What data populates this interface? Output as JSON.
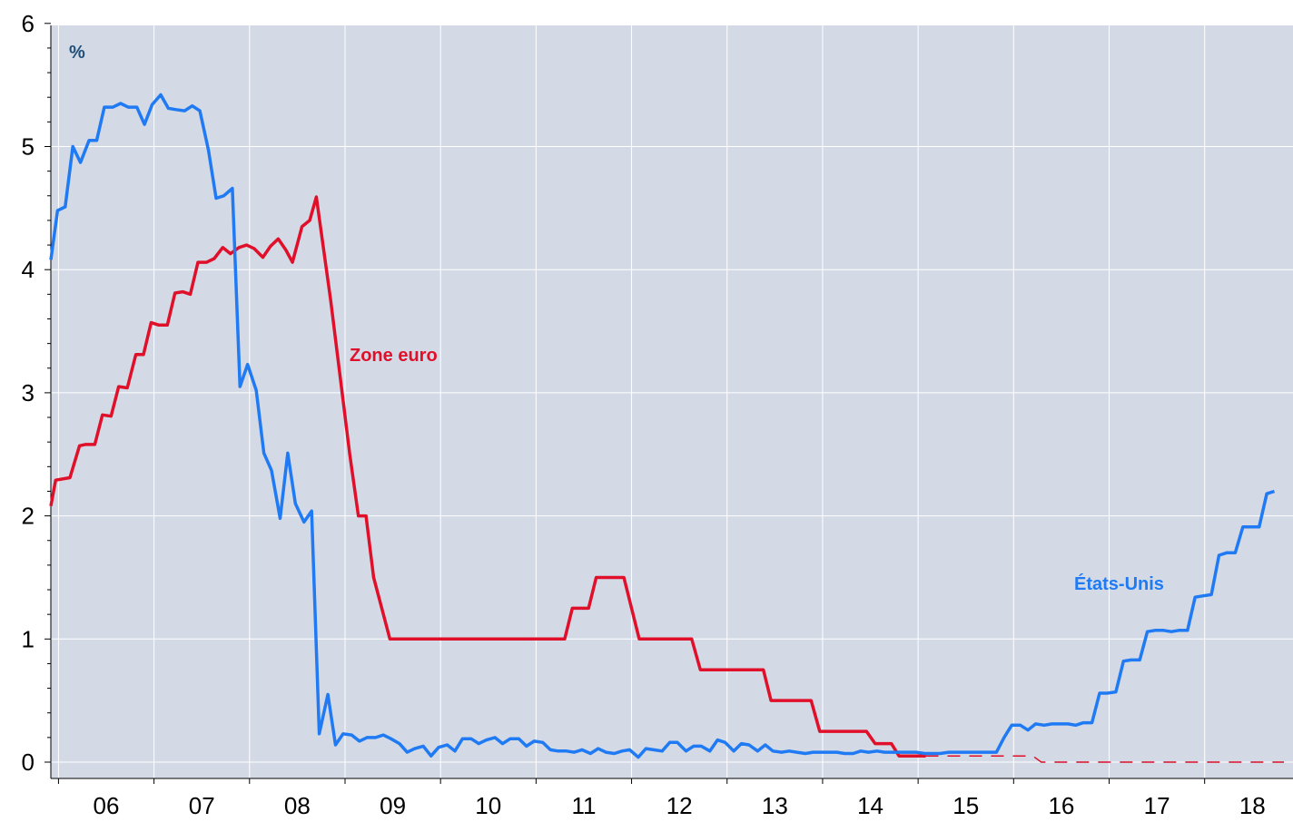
{
  "chart_data": {
    "type": "line",
    "unit_label": "%",
    "x_tick_labels": [
      "06",
      "07",
      "08",
      "09",
      "10",
      "11",
      "12",
      "13",
      "14",
      "15",
      "16",
      "17",
      "18"
    ],
    "y_ticks": [
      0,
      1,
      2,
      3,
      4,
      5,
      6
    ],
    "xlim": [
      2005.92,
      2018.83
    ],
    "ylim": [
      -0.1,
      6
    ],
    "grid": true,
    "colors": {
      "plot_background": "#d3dae6",
      "grid": "#ffffff",
      "unit_label": "#1f4e79"
    },
    "series": [
      {
        "name": "Zone euro",
        "color": "#e0102a",
        "style": "solid",
        "label_color": "#e0102a",
        "points": [
          [
            2005.92,
            2.08
          ],
          [
            2005.97,
            2.29
          ],
          [
            2006.12,
            2.31
          ],
          [
            2006.22,
            2.57
          ],
          [
            2006.28,
            2.58
          ],
          [
            2006.38,
            2.58
          ],
          [
            2006.46,
            2.82
          ],
          [
            2006.55,
            2.81
          ],
          [
            2006.63,
            3.05
          ],
          [
            2006.72,
            3.04
          ],
          [
            2006.81,
            3.31
          ],
          [
            2006.89,
            3.31
          ],
          [
            2006.97,
            3.57
          ],
          [
            2007.05,
            3.55
          ],
          [
            2007.14,
            3.55
          ],
          [
            2007.22,
            3.81
          ],
          [
            2007.3,
            3.82
          ],
          [
            2007.38,
            3.8
          ],
          [
            2007.46,
            4.06
          ],
          [
            2007.55,
            4.06
          ],
          [
            2007.63,
            4.09
          ],
          [
            2007.72,
            4.18
          ],
          [
            2007.8,
            4.13
          ],
          [
            2007.89,
            4.18
          ],
          [
            2007.97,
            4.2
          ],
          [
            2008.05,
            4.17
          ],
          [
            2008.14,
            4.1
          ],
          [
            2008.22,
            4.19
          ],
          [
            2008.3,
            4.25
          ],
          [
            2008.38,
            4.16
          ],
          [
            2008.45,
            4.06
          ],
          [
            2008.55,
            4.35
          ],
          [
            2008.63,
            4.4
          ],
          [
            2008.7,
            4.59
          ],
          [
            2008.85,
            3.75
          ],
          [
            2008.97,
            3.0
          ],
          [
            2009.05,
            2.5
          ],
          [
            2009.14,
            2.0
          ],
          [
            2009.22,
            2.0
          ],
          [
            2009.3,
            1.5
          ],
          [
            2009.47,
            1.0
          ],
          [
            2010.0,
            1.0
          ],
          [
            2010.5,
            1.0
          ],
          [
            2011.0,
            1.0
          ],
          [
            2011.3,
            1.0
          ],
          [
            2011.38,
            1.25
          ],
          [
            2011.55,
            1.25
          ],
          [
            2011.63,
            1.5
          ],
          [
            2011.92,
            1.5
          ],
          [
            2012.08,
            1.0
          ],
          [
            2012.63,
            1.0
          ],
          [
            2012.72,
            0.75
          ],
          [
            2013.25,
            0.75
          ],
          [
            2013.38,
            0.75
          ],
          [
            2013.46,
            0.5
          ],
          [
            2013.88,
            0.5
          ],
          [
            2013.97,
            0.25
          ],
          [
            2014.46,
            0.25
          ],
          [
            2014.55,
            0.15
          ],
          [
            2014.72,
            0.15
          ],
          [
            2014.8,
            0.05
          ],
          [
            2015.08,
            0.05
          ]
        ]
      },
      {
        "name": "Zone euro (suite)",
        "color": "#e0102a",
        "style": "dashed",
        "points": [
          [
            2015.08,
            0.05
          ],
          [
            2015.72,
            0.05
          ],
          [
            2015.72,
            0.05
          ],
          [
            2016.2,
            0.05
          ],
          [
            2016.29,
            0.0
          ],
          [
            2018.83,
            0.0
          ]
        ]
      },
      {
        "name": "États-Unis",
        "color": "#1f7af3",
        "style": "solid",
        "label_color": "#1f7af3",
        "points": [
          [
            2005.92,
            4.08
          ],
          [
            2005.99,
            4.48
          ],
          [
            2006.07,
            4.51
          ],
          [
            2006.15,
            5.0
          ],
          [
            2006.23,
            4.87
          ],
          [
            2006.32,
            5.05
          ],
          [
            2006.4,
            5.05
          ],
          [
            2006.48,
            5.32
          ],
          [
            2006.57,
            5.32
          ],
          [
            2006.65,
            5.35
          ],
          [
            2006.73,
            5.32
          ],
          [
            2006.82,
            5.32
          ],
          [
            2006.9,
            5.18
          ],
          [
            2006.98,
            5.34
          ],
          [
            2007.07,
            5.42
          ],
          [
            2007.15,
            5.31
          ],
          [
            2007.23,
            5.3
          ],
          [
            2007.32,
            5.29
          ],
          [
            2007.4,
            5.33
          ],
          [
            2007.48,
            5.29
          ],
          [
            2007.57,
            4.97
          ],
          [
            2007.65,
            4.58
          ],
          [
            2007.73,
            4.6
          ],
          [
            2007.82,
            4.66
          ],
          [
            2007.9,
            3.05
          ],
          [
            2007.98,
            3.23
          ],
          [
            2008.07,
            3.02
          ],
          [
            2008.15,
            2.51
          ],
          [
            2008.23,
            2.37
          ],
          [
            2008.32,
            1.98
          ],
          [
            2008.4,
            2.51
          ],
          [
            2008.48,
            2.1
          ],
          [
            2008.57,
            1.95
          ],
          [
            2008.65,
            2.04
          ],
          [
            2008.73,
            0.23
          ],
          [
            2008.82,
            0.55
          ],
          [
            2008.9,
            0.14
          ],
          [
            2008.98,
            0.23
          ],
          [
            2009.07,
            0.22
          ],
          [
            2009.15,
            0.17
          ],
          [
            2009.23,
            0.2
          ],
          [
            2009.32,
            0.2
          ],
          [
            2009.4,
            0.22
          ],
          [
            2009.48,
            0.19
          ],
          [
            2009.57,
            0.15
          ],
          [
            2009.65,
            0.08
          ],
          [
            2009.73,
            0.11
          ],
          [
            2009.82,
            0.13
          ],
          [
            2009.9,
            0.05
          ],
          [
            2009.98,
            0.12
          ],
          [
            2010.07,
            0.14
          ],
          [
            2010.15,
            0.09
          ],
          [
            2010.23,
            0.19
          ],
          [
            2010.32,
            0.19
          ],
          [
            2010.4,
            0.15
          ],
          [
            2010.48,
            0.18
          ],
          [
            2010.57,
            0.2
          ],
          [
            2010.65,
            0.15
          ],
          [
            2010.73,
            0.19
          ],
          [
            2010.82,
            0.19
          ],
          [
            2010.9,
            0.13
          ],
          [
            2010.98,
            0.17
          ],
          [
            2011.07,
            0.16
          ],
          [
            2011.15,
            0.1
          ],
          [
            2011.23,
            0.09
          ],
          [
            2011.32,
            0.09
          ],
          [
            2011.4,
            0.08
          ],
          [
            2011.48,
            0.1
          ],
          [
            2011.57,
            0.07
          ],
          [
            2011.65,
            0.11
          ],
          [
            2011.73,
            0.08
          ],
          [
            2011.82,
            0.07
          ],
          [
            2011.9,
            0.09
          ],
          [
            2011.98,
            0.1
          ],
          [
            2012.07,
            0.04
          ],
          [
            2012.15,
            0.11
          ],
          [
            2012.23,
            0.1
          ],
          [
            2012.32,
            0.09
          ],
          [
            2012.4,
            0.16
          ],
          [
            2012.48,
            0.16
          ],
          [
            2012.57,
            0.09
          ],
          [
            2012.65,
            0.13
          ],
          [
            2012.73,
            0.13
          ],
          [
            2012.82,
            0.09
          ],
          [
            2012.9,
            0.18
          ],
          [
            2012.98,
            0.16
          ],
          [
            2013.07,
            0.09
          ],
          [
            2013.15,
            0.15
          ],
          [
            2013.23,
            0.14
          ],
          [
            2013.32,
            0.09
          ],
          [
            2013.4,
            0.14
          ],
          [
            2013.48,
            0.09
          ],
          [
            2013.57,
            0.08
          ],
          [
            2013.65,
            0.09
          ],
          [
            2013.73,
            0.08
          ],
          [
            2013.82,
            0.07
          ],
          [
            2013.9,
            0.08
          ],
          [
            2013.98,
            0.08
          ],
          [
            2014.07,
            0.08
          ],
          [
            2014.15,
            0.08
          ],
          [
            2014.23,
            0.07
          ],
          [
            2014.32,
            0.07
          ],
          [
            2014.4,
            0.09
          ],
          [
            2014.48,
            0.08
          ],
          [
            2014.57,
            0.09
          ],
          [
            2014.65,
            0.08
          ],
          [
            2014.73,
            0.08
          ],
          [
            2014.82,
            0.08
          ],
          [
            2014.9,
            0.08
          ],
          [
            2014.98,
            0.08
          ],
          [
            2015.07,
            0.07
          ],
          [
            2015.15,
            0.07
          ],
          [
            2015.23,
            0.07
          ],
          [
            2015.32,
            0.08
          ],
          [
            2015.4,
            0.08
          ],
          [
            2015.48,
            0.08
          ],
          [
            2015.57,
            0.08
          ],
          [
            2015.65,
            0.08
          ],
          [
            2015.73,
            0.08
          ],
          [
            2015.82,
            0.08
          ],
          [
            2015.9,
            0.2
          ],
          [
            2015.98,
            0.3
          ],
          [
            2016.07,
            0.3
          ],
          [
            2016.15,
            0.26
          ],
          [
            2016.23,
            0.31
          ],
          [
            2016.32,
            0.3
          ],
          [
            2016.4,
            0.31
          ],
          [
            2016.48,
            0.31
          ],
          [
            2016.57,
            0.31
          ],
          [
            2016.65,
            0.3
          ],
          [
            2016.73,
            0.32
          ],
          [
            2016.82,
            0.32
          ],
          [
            2016.9,
            0.56
          ],
          [
            2016.98,
            0.56
          ],
          [
            2017.07,
            0.57
          ],
          [
            2017.15,
            0.82
          ],
          [
            2017.23,
            0.83
          ],
          [
            2017.32,
            0.83
          ],
          [
            2017.4,
            1.06
          ],
          [
            2017.48,
            1.07
          ],
          [
            2017.57,
            1.07
          ],
          [
            2017.65,
            1.06
          ],
          [
            2017.73,
            1.07
          ],
          [
            2017.82,
            1.07
          ],
          [
            2017.9,
            1.34
          ],
          [
            2017.98,
            1.35
          ],
          [
            2018.07,
            1.36
          ],
          [
            2018.15,
            1.68
          ],
          [
            2018.23,
            1.7
          ],
          [
            2018.32,
            1.7
          ],
          [
            2018.4,
            1.91
          ],
          [
            2018.48,
            1.91
          ],
          [
            2018.57,
            1.91
          ],
          [
            2018.65,
            2.18
          ],
          [
            2018.73,
            2.2
          ]
        ]
      }
    ]
  }
}
